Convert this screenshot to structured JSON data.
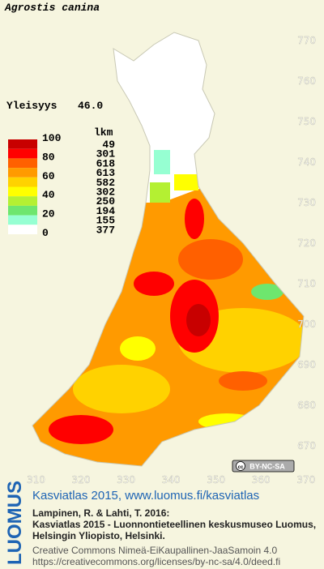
{
  "map": {
    "title": "Agrostis canina",
    "frequency_label": "Yleisyys",
    "frequency_value": "46.0",
    "legend": {
      "count_header": "lkm",
      "scale_labels": [
        "100",
        "80",
        "60",
        "40",
        "20",
        "0"
      ],
      "colors": [
        "#c80000",
        "#ff0000",
        "#ff6000",
        "#ff9a00",
        "#ffd200",
        "#ffff00",
        "#b4f032",
        "#6ee66e",
        "#96ffd2",
        "#ffffff"
      ],
      "counts": [
        "49",
        "301",
        "618",
        "613",
        "582",
        "302",
        "250",
        "194",
        "155",
        "377"
      ]
    },
    "xlim": [
      302,
      374
    ],
    "ylim": [
      663,
      780
    ],
    "xticks": [
      310,
      320,
      330,
      340,
      350,
      360,
      370
    ],
    "yticks": [
      670,
      680,
      690,
      700,
      710,
      720,
      730,
      740,
      750,
      760,
      770
    ],
    "license_badge": "BY-NC-SA"
  },
  "footer": {
    "logo": "LUOMUS",
    "headline": "Kasviatlas 2015, www.luomus.fi/kasviatlas",
    "citation": [
      "Lampinen, R. & Lahti, T. 2016:",
      "Kasviatlas 2015 - Luonnontieteellinen keskusmuseo Luomus,",
      "Helsingin Yliopisto, Helsinki."
    ],
    "license": [
      "Creative Commons Nimeä-EiKaupallinen-JaaSamoin 4.0",
      "https://creativecommons.org/licenses/by-nc-sa/4.0/deed.fi"
    ]
  }
}
